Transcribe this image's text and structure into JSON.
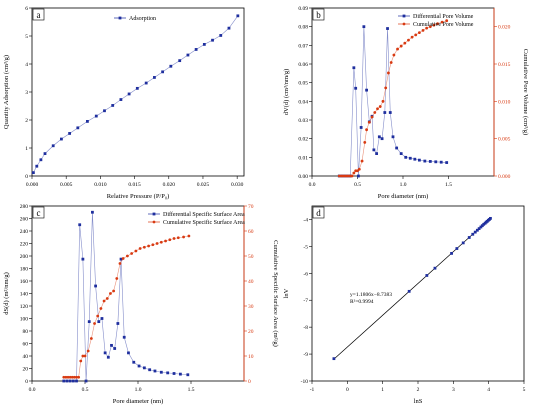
{
  "figure": {
    "panels": [
      {
        "id": "a",
        "letter": "a",
        "chart_data": {
          "type": "line",
          "xlabel": "Relative Pressure (P/P₀)",
          "ylabel": "Quantity Adsorption (cm³/g)",
          "xlim": [
            0,
            0.031
          ],
          "ylim": [
            0,
            6
          ],
          "xticks": [
            0.0,
            0.005,
            0.01,
            0.015,
            0.02,
            0.025,
            0.03
          ],
          "xtick_labels": [
            "0.000",
            "0.005",
            "0.010",
            "0.015",
            "0.020",
            "0.025",
            "0.030"
          ],
          "yticks": [
            0,
            1,
            2,
            3,
            4,
            5,
            6
          ],
          "ytick_labels": [
            "0",
            "1",
            "2",
            "3",
            "4",
            "5",
            "6"
          ],
          "legend_position": "top-center",
          "series": [
            {
              "name": "Adsorption",
              "color": "#1f2f9e",
              "marker": "square",
              "x": [
                0.0002,
                0.0007,
                0.0013,
                0.0019,
                0.0031,
                0.0043,
                0.0055,
                0.0067,
                0.0081,
                0.0094,
                0.0106,
                0.0118,
                0.013,
                0.0142,
                0.0154,
                0.0167,
                0.0179,
                0.0191,
                0.0203,
                0.0216,
                0.0228,
                0.024,
                0.0252,
                0.0264,
                0.0276,
                0.0288,
                0.0301
              ],
              "y": [
                0.12,
                0.35,
                0.58,
                0.8,
                1.08,
                1.32,
                1.52,
                1.72,
                1.95,
                2.14,
                2.33,
                2.52,
                2.73,
                2.93,
                3.13,
                3.32,
                3.52,
                3.72,
                3.92,
                4.12,
                4.32,
                4.52,
                4.7,
                4.85,
                5.02,
                5.28,
                5.72
              ]
            }
          ]
        }
      },
      {
        "id": "b",
        "letter": "b",
        "chart_data": {
          "type": "line",
          "xlabel": "Pore diameter (nm)",
          "ylabel": "dV(d) (cm³/nm/g)",
          "y2label": "Cumulative Pore Volume (cm³/g)",
          "xlim": [
            0,
            2.0
          ],
          "ylim": [
            0,
            0.09
          ],
          "y2lim": [
            0,
            0.0225
          ],
          "xticks": [
            0.0,
            0.5,
            1.0,
            1.5
          ],
          "xtick_labels": [
            "0.0",
            "0.5",
            "1.0",
            "1.5"
          ],
          "yticks": [
            0,
            0.01,
            0.02,
            0.03,
            0.04,
            0.05,
            0.06,
            0.07,
            0.08,
            0.09
          ],
          "ytick_labels": [
            "0.00",
            "0.01",
            "0.02",
            "0.03",
            "0.04",
            "0.05",
            "0.06",
            "0.07",
            "0.08",
            "0.09"
          ],
          "y2ticks": [
            0,
            0.005,
            0.01,
            0.015,
            0.02
          ],
          "y2tick_labels": [
            "0.000",
            "0.005",
            "0.010",
            "0.015",
            "0.020"
          ],
          "legend_position": "top-right",
          "series": [
            {
              "name": "Differential Pore Volume",
              "color": "#1f2f9e",
              "axis": "left",
              "marker": "square",
              "x": [
                0.3,
                0.33,
                0.36,
                0.39,
                0.42,
                0.46,
                0.48,
                0.51,
                0.54,
                0.57,
                0.6,
                0.63,
                0.66,
                0.68,
                0.71,
                0.74,
                0.77,
                0.8,
                0.83,
                0.86,
                0.89,
                0.93,
                0.98,
                1.03,
                1.08,
                1.13,
                1.18,
                1.24,
                1.3,
                1.36,
                1.42,
                1.48
              ],
              "y": [
                0,
                0,
                0,
                0,
                0,
                0.058,
                0.047,
                0.0,
                0.026,
                0.08,
                0.046,
                0.029,
                0.032,
                0.014,
                0.012,
                0.021,
                0.02,
                0.034,
                0.079,
                0.034,
                0.021,
                0.015,
                0.012,
                0.01,
                0.0095,
                0.009,
                0.0085,
                0.008,
                0.0078,
                0.0076,
                0.0074,
                0.0072
              ]
            },
            {
              "name": "Cumulative Pore Volume",
              "color": "#d83a12",
              "axis": "right",
              "marker": "circle",
              "x": [
                0.3,
                0.32,
                0.34,
                0.36,
                0.38,
                0.4,
                0.42,
                0.44,
                0.46,
                0.48,
                0.5,
                0.52,
                0.55,
                0.58,
                0.6,
                0.63,
                0.66,
                0.69,
                0.72,
                0.75,
                0.78,
                0.81,
                0.84,
                0.87,
                0.9,
                0.94,
                0.98,
                1.02,
                1.06,
                1.1,
                1.14,
                1.18,
                1.22,
                1.26,
                1.3,
                1.34,
                1.38,
                1.43,
                1.48
              ],
              "y": [
                0.0,
                0.0,
                0.0,
                0.0,
                0.0,
                0.0,
                0.0,
                0.0,
                0.0004,
                0.0007,
                0.0007,
                0.0009,
                0.002,
                0.0045,
                0.0062,
                0.0072,
                0.0079,
                0.0085,
                0.009,
                0.0093,
                0.01,
                0.0118,
                0.0138,
                0.0152,
                0.0162,
                0.017,
                0.0174,
                0.0178,
                0.0182,
                0.0186,
                0.0189,
                0.0192,
                0.0195,
                0.0198,
                0.02,
                0.0202,
                0.0204,
                0.0206,
                0.0208
              ]
            }
          ]
        }
      },
      {
        "id": "c",
        "letter": "c",
        "chart_data": {
          "type": "line",
          "xlabel": "Pore diameter (nm)",
          "ylabel": "dS(d) (m²/nm/g)",
          "y2label": "Cumulative Specific Surface Area (m²/g)",
          "xlim": [
            0,
            2.0
          ],
          "ylim": [
            0,
            280
          ],
          "y2lim": [
            0,
            70
          ],
          "xticks": [
            0.0,
            0.5,
            1.0,
            1.5
          ],
          "xtick_labels": [
            "0.0",
            "0.5",
            "1.0",
            "1.5"
          ],
          "yticks": [
            0,
            20,
            40,
            60,
            80,
            100,
            120,
            140,
            160,
            180,
            200,
            220,
            240,
            260,
            280
          ],
          "ytick_labels": [
            "0",
            "20",
            "40",
            "60",
            "80",
            "100",
            "120",
            "140",
            "160",
            "180",
            "200",
            "220",
            "240",
            "260",
            "280"
          ],
          "y2ticks": [
            0,
            10,
            20,
            30,
            40,
            50,
            60,
            70
          ],
          "y2tick_labels": [
            "0",
            "10",
            "20",
            "30",
            "40",
            "50",
            "60",
            "70"
          ],
          "legend_position": "top-right",
          "series": [
            {
              "name": "Differential Specific Surface Area",
              "color": "#1f2f9e",
              "axis": "left",
              "marker": "square",
              "x": [
                0.3,
                0.33,
                0.36,
                0.39,
                0.42,
                0.45,
                0.48,
                0.51,
                0.54,
                0.57,
                0.6,
                0.63,
                0.66,
                0.69,
                0.72,
                0.75,
                0.78,
                0.81,
                0.84,
                0.87,
                0.91,
                0.96,
                1.01,
                1.06,
                1.11,
                1.16,
                1.22,
                1.28,
                1.34,
                1.4,
                1.47
              ],
              "y": [
                0,
                0,
                0,
                0,
                0,
                250,
                195,
                0,
                95,
                270,
                152,
                95,
                100,
                45,
                38,
                57,
                52,
                92,
                195,
                70,
                45,
                30,
                24,
                21,
                18,
                16,
                14,
                13,
                12,
                11,
                10
              ]
            },
            {
              "name": "Cumulative Specific Surface Area",
              "color": "#d83a12",
              "axis": "right",
              "marker": "circle",
              "x": [
                0.3,
                0.32,
                0.34,
                0.36,
                0.38,
                0.4,
                0.42,
                0.44,
                0.46,
                0.48,
                0.5,
                0.53,
                0.56,
                0.59,
                0.62,
                0.65,
                0.68,
                0.71,
                0.74,
                0.77,
                0.8,
                0.83,
                0.86,
                0.9,
                0.94,
                0.98,
                1.02,
                1.06,
                1.1,
                1.14,
                1.18,
                1.22,
                1.26,
                1.3,
                1.34,
                1.38,
                1.43,
                1.48
              ],
              "y": [
                1.5,
                1.5,
                1.5,
                1.5,
                1.5,
                1.5,
                1.5,
                1.5,
                8,
                10,
                10,
                12,
                17,
                23,
                26,
                29,
                32,
                33,
                35,
                36,
                41,
                47,
                49,
                50,
                51,
                52,
                53,
                53.5,
                54,
                54.5,
                55,
                55.5,
                56,
                56.5,
                57,
                57.3,
                57.6,
                58
              ]
            }
          ]
        }
      },
      {
        "id": "d",
        "letter": "d",
        "chart_data": {
          "type": "scatter",
          "xlabel": "lnS",
          "ylabel": "lnV",
          "xlim": [
            -1,
            5
          ],
          "ylim": [
            -10,
            -3.5
          ],
          "xticks": [
            -1,
            0,
            1,
            2,
            3,
            4,
            5
          ],
          "xtick_labels": [
            "-1",
            "0",
            "1",
            "2",
            "3",
            "4",
            "5"
          ],
          "yticks": [
            -10,
            -9,
            -8,
            -7,
            -6,
            -5,
            -4
          ],
          "ytick_labels": [
            "-10",
            "-9",
            "-8",
            "-7",
            "-6",
            "-5",
            "-4"
          ],
          "annotation_line1": "y=1.1806x−8.7383",
          "annotation_line2": "R²=0.9994",
          "fit": {
            "slope": 1.1806,
            "intercept": -8.7383,
            "x_range": [
              -0.38,
              4.05
            ]
          },
          "series": [
            {
              "color": "#1f2f9e",
              "marker": "square",
              "x": [
                -0.38,
                1.75,
                2.25,
                2.48,
                2.95,
                3.1,
                3.28,
                3.45,
                3.55,
                3.62,
                3.68,
                3.73,
                3.78,
                3.82,
                3.86,
                3.9,
                3.93,
                3.96,
                3.99,
                4.02,
                4.05
              ],
              "y": [
                -9.17,
                -6.67,
                -6.08,
                -5.81,
                -5.26,
                -5.08,
                -4.87,
                -4.67,
                -4.55,
                -4.47,
                -4.4,
                -4.34,
                -4.28,
                -4.23,
                -4.18,
                -4.14,
                -4.1,
                -4.07,
                -4.03,
                -4.0,
                -3.96
              ]
            }
          ]
        }
      }
    ]
  }
}
